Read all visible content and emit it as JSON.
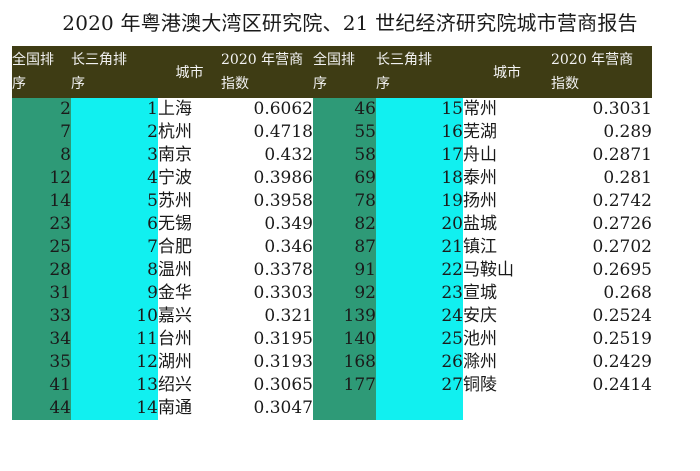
{
  "title": "2020 年粤港澳大湾区研究院、21 世纪经济研究院城市营商报告",
  "headers": {
    "national_rank": [
      "全国排",
      "序"
    ],
    "yrd_rank": [
      "长三角排",
      "序"
    ],
    "city": "城市",
    "index": [
      "2020 年营商",
      "指数"
    ]
  },
  "left_rows": [
    {
      "national": "2",
      "yrd": "1",
      "city": "上海",
      "index": "0.6062"
    },
    {
      "national": "7",
      "yrd": "2",
      "city": "杭州",
      "index": "0.4718"
    },
    {
      "national": "8",
      "yrd": "3",
      "city": "南京",
      "index": "0.432"
    },
    {
      "national": "12",
      "yrd": "4",
      "city": "宁波",
      "index": "0.3986"
    },
    {
      "national": "14",
      "yrd": "5",
      "city": "苏州",
      "index": "0.3958"
    },
    {
      "national": "23",
      "yrd": "6",
      "city": "无锡",
      "index": "0.349"
    },
    {
      "national": "25",
      "yrd": "7",
      "city": "合肥",
      "index": "0.346"
    },
    {
      "national": "28",
      "yrd": "8",
      "city": "温州",
      "index": "0.3378"
    },
    {
      "national": "31",
      "yrd": "9",
      "city": "金华",
      "index": "0.3303"
    },
    {
      "national": "33",
      "yrd": "10",
      "city": "嘉兴",
      "index": "0.321"
    },
    {
      "national": "34",
      "yrd": "11",
      "city": "台州",
      "index": "0.3195"
    },
    {
      "national": "35",
      "yrd": "12",
      "city": "湖州",
      "index": "0.3193"
    },
    {
      "national": "41",
      "yrd": "13",
      "city": "绍兴",
      "index": "0.3065"
    },
    {
      "national": "44",
      "yrd": "14",
      "city": "南通",
      "index": "0.3047"
    }
  ],
  "right_rows": [
    {
      "national": "46",
      "yrd": "15",
      "city": "常州",
      "index": "0.3031"
    },
    {
      "national": "55",
      "yrd": "16",
      "city": "芜湖",
      "index": "0.289"
    },
    {
      "national": "58",
      "yrd": "17",
      "city": "舟山",
      "index": "0.2871"
    },
    {
      "national": "69",
      "yrd": "18",
      "city": "泰州",
      "index": "0.281"
    },
    {
      "national": "78",
      "yrd": "19",
      "city": "扬州",
      "index": "0.2742"
    },
    {
      "national": "82",
      "yrd": "20",
      "city": "盐城",
      "index": "0.2726"
    },
    {
      "national": "87",
      "yrd": "21",
      "city": "镇江",
      "index": "0.2702"
    },
    {
      "national": "91",
      "yrd": "22",
      "city": "马鞍山",
      "index": "0.2695"
    },
    {
      "national": "92",
      "yrd": "23",
      "city": "宣城",
      "index": "0.268"
    },
    {
      "national": "139",
      "yrd": "24",
      "city": "安庆",
      "index": "0.2524"
    },
    {
      "national": "140",
      "yrd": "25",
      "city": "池州",
      "index": "0.2519"
    },
    {
      "national": "168",
      "yrd": "26",
      "city": "滁州",
      "index": "0.2429"
    },
    {
      "national": "177",
      "yrd": "27",
      "city": "铜陵",
      "index": "0.2414"
    },
    {
      "national": "",
      "yrd": "",
      "city": "",
      "index": ""
    }
  ],
  "colors": {
    "header_bg": "#3e3c14",
    "national_rank_bg": "#2e9a77",
    "yrd_rank_bg": "#11f0f0"
  }
}
